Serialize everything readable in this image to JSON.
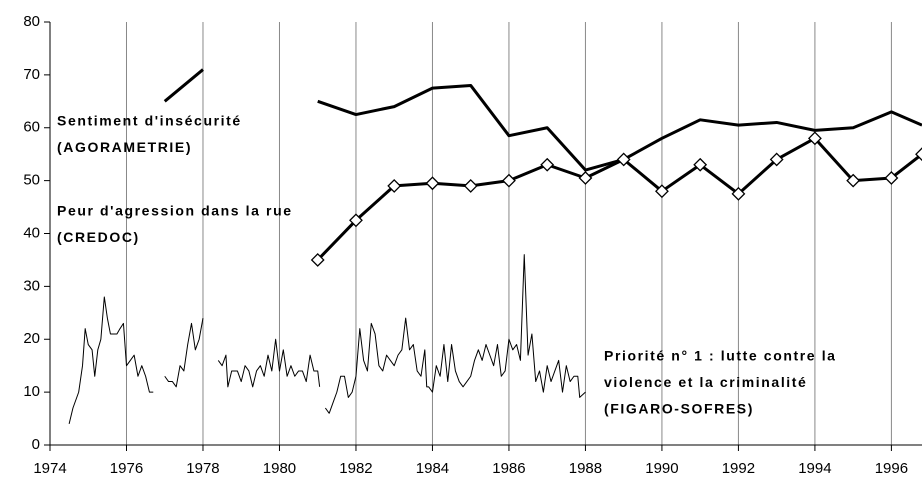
{
  "chart_data": {
    "type": "line",
    "xlim": [
      1974,
      1996.8
    ],
    "ylim": [
      0,
      80
    ],
    "xticks": [
      1974,
      1976,
      1978,
      1980,
      1982,
      1984,
      1986,
      1988,
      1990,
      1992,
      1994,
      1996
    ],
    "yticks": [
      0,
      10,
      20,
      30,
      40,
      50,
      60,
      70,
      80
    ],
    "grid": "x",
    "series": [
      {
        "labels": [
          "Sentiment d'insécurité",
          "(AGORAMETRIE)"
        ],
        "color": "#000000",
        "width": 3,
        "marker": null,
        "x": [
          1977,
          1978,
          1979.5,
          1981,
          1982,
          1983,
          1984,
          1985,
          1986,
          1987,
          1988,
          1989,
          1990,
          1991,
          1992,
          1993,
          1994,
          1995,
          1996,
          1996.8
        ],
        "values": [
          65,
          71,
          null,
          65,
          62.5,
          64,
          67.5,
          68,
          58.5,
          60,
          52,
          54,
          58,
          61.5,
          60.5,
          61,
          59.5,
          60,
          63,
          60.5
        ]
      },
      {
        "labels": [
          "Peur d'agression dans la rue",
          "(CREDOC)"
        ],
        "color": "#000000",
        "width": 3,
        "marker": "diamond",
        "x": [
          1981,
          1982,
          1983,
          1984,
          1985,
          1986,
          1987,
          1988,
          1989,
          1990,
          1991,
          1992,
          1993,
          1994,
          1995,
          1996,
          1996.8
        ],
        "values": [
          35,
          42.5,
          49,
          49.5,
          49,
          50,
          53,
          50.5,
          54,
          48,
          53,
          47.5,
          54,
          58,
          50,
          50.5,
          55
        ]
      },
      {
        "labels": [
          "Priorité n° 1 : lutte contre la",
          "violence et la criminalité",
          "(FIGARO-SOFRES)"
        ],
        "color": "#000000",
        "width": 1,
        "marker": null,
        "x": [
          1974.5,
          1974.6,
          1974.75,
          1974.85,
          1974.92,
          1975,
          1975.1,
          1975.17,
          1975.25,
          1975.33,
          1975.42,
          1975.5,
          1975.58,
          1975.67,
          1975.75,
          1975.83,
          1975.92,
          1976,
          1976.1,
          1976.2,
          1976.3,
          1976.4,
          1976.5,
          1976.6,
          1976.7,
          1976.85,
          1977,
          1977.1,
          1977.2,
          1977.3,
          1977.4,
          1977.5,
          1977.6,
          1977.7,
          1977.8,
          1977.9,
          1978,
          1978.2,
          1978.4,
          1978.5,
          1978.6,
          1978.65,
          1978.75,
          1978.9,
          1979,
          1979.1,
          1979.2,
          1979.3,
          1979.4,
          1979.5,
          1979.6,
          1979.7,
          1979.8,
          1979.9,
          1980,
          1980.1,
          1980.2,
          1980.3,
          1980.4,
          1980.5,
          1980.6,
          1980.7,
          1980.8,
          1980.9,
          1981,
          1981.05,
          1981.1,
          1981.2,
          1981.3,
          1981.4,
          1981.5,
          1981.6,
          1981.7,
          1981.8,
          1981.9,
          1982,
          1982.1,
          1982.2,
          1982.3,
          1982.4,
          1982.5,
          1982.6,
          1982.7,
          1982.8,
          1982.9,
          1983,
          1983.1,
          1983.2,
          1983.3,
          1983.4,
          1983.5,
          1983.6,
          1983.7,
          1983.8,
          1983.85,
          1983.9,
          1984,
          1984.1,
          1984.2,
          1984.3,
          1984.4,
          1984.5,
          1984.6,
          1984.7,
          1984.8,
          1984.9,
          1985,
          1985.1,
          1985.2,
          1985.3,
          1985.4,
          1985.5,
          1985.6,
          1985.7,
          1985.8,
          1985.9,
          1986,
          1986.1,
          1986.2,
          1986.3,
          1986.4,
          1986.5,
          1986.6,
          1986.7,
          1986.8,
          1986.9,
          1987,
          1987.1,
          1987.2,
          1987.3,
          1987.4,
          1987.5,
          1987.6,
          1987.7,
          1987.8,
          1987.85,
          1988
        ],
        "values": [
          4,
          7,
          10,
          15,
          22,
          19,
          18,
          13,
          18,
          20,
          28,
          24,
          21,
          21,
          21,
          22,
          23,
          15,
          16,
          17,
          13,
          15,
          13,
          10,
          10,
          null,
          13,
          12,
          12,
          11,
          15,
          14,
          19,
          23,
          18,
          20,
          24,
          null,
          16,
          15,
          17,
          11,
          14,
          14,
          12,
          15,
          14,
          11,
          14,
          15,
          13,
          17,
          14,
          20,
          14,
          18,
          13,
          15,
          13,
          14,
          14,
          12,
          17,
          14,
          14,
          11,
          null,
          7,
          6,
          8,
          10,
          13,
          13,
          9,
          10,
          13,
          22,
          16,
          14,
          23,
          21,
          15,
          14,
          17,
          16,
          15,
          17,
          18,
          24,
          18,
          19,
          14,
          13,
          18,
          11,
          11,
          10,
          15,
          13,
          19,
          12,
          19,
          14,
          12,
          11,
          12,
          13,
          16,
          18,
          16,
          19,
          17,
          15,
          19,
          13,
          14,
          20,
          18,
          19,
          16,
          36,
          17,
          21,
          12,
          14,
          10,
          15,
          12,
          14,
          16,
          10,
          15,
          12,
          13,
          13,
          9,
          10
        ]
      }
    ]
  }
}
